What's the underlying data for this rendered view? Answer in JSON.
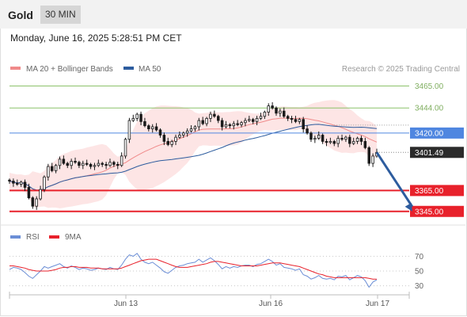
{
  "header": {
    "instrument": "Gold",
    "timeframe": "30 MIN"
  },
  "timestamp": "Monday, June 16, 2025 5:28:51 PM CET",
  "colors": {
    "support": "#e8212b",
    "resistance": "#8cc26a",
    "pivot": "#4f86e0",
    "ma50": "#2d5c9e",
    "bollinger_fill": "#fde0e0",
    "ma20": "#f08a8a",
    "candle": "#1a1a1a",
    "rsi": "#6b8ed6",
    "rsi_ma": "#e8212b",
    "arrow": "#2d5c9e"
  },
  "chart_data": [
    {
      "type": "candlestick",
      "legend": [
        {
          "label": "MA 20 + Bollinger Bands",
          "color": "#f08a8a"
        },
        {
          "label": "MA 50",
          "color": "#2d5c9e"
        }
      ],
      "watermark": "Research © 2025 Trading Central",
      "ylim": [
        3338,
        3473
      ],
      "x_ticks": [
        "Jun 13",
        "Jun 16",
        "Jun 17"
      ],
      "levels": [
        {
          "label": "3465.00",
          "value": 3465,
          "role": "resistance"
        },
        {
          "label": "3444.00",
          "value": 3444,
          "role": "resistance"
        },
        {
          "label": "3420.00",
          "value": 3420,
          "role": "pivot"
        },
        {
          "label": "3401.49",
          "value": 3401.49,
          "role": "last"
        },
        {
          "label": "3365.00",
          "value": 3365,
          "role": "support"
        },
        {
          "label": "3345.00",
          "value": 3345,
          "role": "support"
        }
      ],
      "closes": [
        3374,
        3372,
        3371,
        3373,
        3368,
        3358,
        3350,
        3357,
        3366,
        3378,
        3388,
        3384,
        3389,
        3395,
        3391,
        3389,
        3393,
        3392,
        3389,
        3391,
        3390,
        3388,
        3389,
        3391,
        3390,
        3389,
        3392,
        3390,
        3389,
        3398,
        3414,
        3432,
        3434,
        3438,
        3431,
        3427,
        3424,
        3426,
        3423,
        3418,
        3412,
        3409,
        3412,
        3416,
        3418,
        3420,
        3422,
        3424,
        3426,
        3432,
        3429,
        3434,
        3438,
        3436,
        3432,
        3426,
        3428,
        3427,
        3429,
        3428,
        3430,
        3432,
        3433,
        3431,
        3434,
        3436,
        3440,
        3446,
        3444,
        3439,
        3441,
        3436,
        3434,
        3433,
        3431,
        3433,
        3424,
        3420,
        3414,
        3415,
        3418,
        3412,
        3411,
        3412,
        3410,
        3415,
        3414,
        3416,
        3410,
        3412,
        3415,
        3412,
        3406,
        3391,
        3398,
        3401.49
      ],
      "projection": {
        "from": 3401.49,
        "to": 3345,
        "bars_ahead": 10
      }
    },
    {
      "type": "line",
      "legend": [
        {
          "label": "RSI",
          "color": "#6b8ed6"
        },
        {
          "label": "9MA",
          "color": "#e8212b"
        }
      ],
      "ylim": [
        22,
        78
      ],
      "y_ticks": [
        70,
        50,
        30
      ],
      "series": [
        {
          "name": "RSI",
          "values": [
            52,
            55,
            54,
            52,
            48,
            43,
            40,
            45,
            50,
            56,
            54,
            56,
            58,
            60,
            56,
            54,
            57,
            55,
            52,
            54,
            53,
            51,
            52,
            54,
            53,
            52,
            55,
            53,
            52,
            58,
            66,
            72,
            70,
            74,
            66,
            62,
            60,
            62,
            58,
            54,
            49,
            47,
            51,
            55,
            57,
            58,
            60,
            61,
            62,
            66,
            62,
            65,
            68,
            64,
            59,
            53,
            56,
            54,
            56,
            55,
            57,
            58,
            58,
            56,
            59,
            60,
            63,
            66,
            63,
            58,
            60,
            55,
            54,
            53,
            51,
            53,
            45,
            43,
            39,
            41,
            44,
            40,
            39,
            40,
            38,
            43,
            42,
            44,
            38,
            41,
            44,
            42,
            37,
            28,
            35,
            38
          ]
        },
        {
          "name": "9MA",
          "values": [
            57,
            57,
            56,
            55,
            54,
            52,
            51,
            50,
            50,
            50,
            50,
            51,
            52,
            54,
            55,
            55,
            56,
            56,
            55,
            55,
            55,
            54,
            54,
            54,
            53,
            53,
            53,
            53,
            53,
            54,
            56,
            58,
            60,
            62,
            64,
            65,
            66,
            66,
            66,
            64,
            62,
            60,
            58,
            56,
            55,
            55,
            55,
            56,
            57,
            58,
            59,
            60,
            62,
            63,
            63,
            62,
            61,
            60,
            59,
            58,
            57,
            57,
            57,
            57,
            57,
            58,
            59,
            60,
            61,
            61,
            61,
            60,
            59,
            58,
            57,
            56,
            54,
            52,
            50,
            48,
            46,
            45,
            43,
            42,
            41,
            41,
            41,
            41,
            41,
            41,
            41,
            41,
            41,
            40,
            39,
            39
          ]
        }
      ]
    }
  ]
}
